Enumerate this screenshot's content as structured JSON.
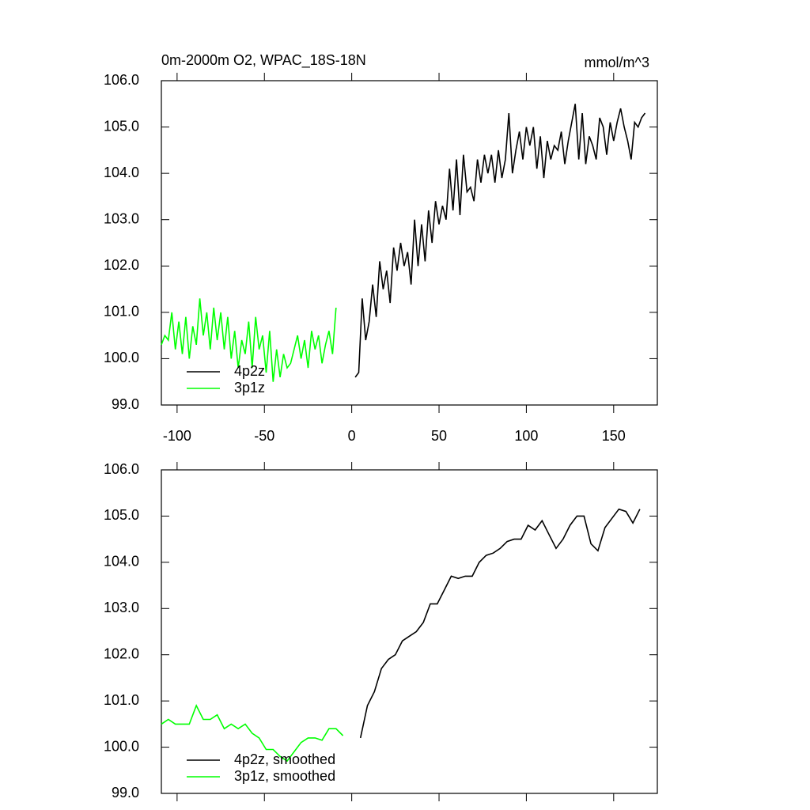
{
  "chart_data": [
    {
      "type": "line",
      "title": "0m-2000m O2, WPAC_18S-18N",
      "units_label": "mmol/m^3",
      "xlim": [
        -109,
        175
      ],
      "xticks": [
        -100,
        -50,
        0,
        50,
        100,
        150
      ],
      "show_xtick_labels": true,
      "ylim": [
        99,
        106
      ],
      "yticks": [
        {
          "value": 99,
          "label": "99.0"
        },
        {
          "value": 100,
          "label": "100.0"
        },
        {
          "value": 101,
          "label": "101.0"
        },
        {
          "value": 102,
          "label": "102.0"
        },
        {
          "value": 103,
          "label": "103.0"
        },
        {
          "value": 104,
          "label": "104.0"
        },
        {
          "value": 105,
          "label": "105.0"
        },
        {
          "value": 106,
          "label": "106.0"
        }
      ],
      "legend": "lower left",
      "series": [
        {
          "name": "4p2z",
          "color": "#000000",
          "x": [
            2,
            4,
            6,
            8,
            10,
            12,
            14,
            16,
            18,
            20,
            22,
            24,
            26,
            28,
            30,
            32,
            34,
            36,
            38,
            40,
            42,
            44,
            46,
            48,
            50,
            52,
            54,
            56,
            58,
            60,
            62,
            64,
            66,
            68,
            70,
            72,
            74,
            76,
            78,
            80,
            82,
            84,
            86,
            88,
            90,
            92,
            94,
            96,
            98,
            100,
            102,
            104,
            106,
            108,
            110,
            112,
            114,
            116,
            118,
            120,
            122,
            124,
            126,
            128,
            130,
            132,
            134,
            136,
            138,
            140,
            142,
            144,
            146,
            148,
            150,
            152,
            154,
            156,
            158,
            160,
            162,
            164,
            166,
            168
          ],
          "values": [
            99.6,
            99.7,
            101.3,
            100.4,
            100.8,
            101.6,
            100.9,
            102.1,
            101.5,
            101.9,
            101.2,
            102.4,
            101.9,
            102.5,
            102.0,
            102.3,
            101.6,
            103.0,
            102.0,
            102.9,
            102.1,
            103.2,
            102.5,
            103.4,
            102.9,
            103.3,
            103.0,
            104.1,
            103.2,
            104.3,
            103.1,
            104.4,
            103.6,
            103.7,
            103.4,
            104.3,
            103.8,
            104.4,
            104.0,
            104.4,
            103.8,
            104.5,
            103.9,
            104.3,
            105.3,
            104.0,
            104.5,
            104.9,
            104.3,
            105.0,
            104.6,
            105.0,
            104.1,
            104.8,
            103.9,
            104.7,
            104.3,
            104.6,
            104.5,
            104.9,
            104.2,
            104.7,
            105.1,
            105.5,
            104.3,
            105.3,
            104.2,
            104.8,
            104.6,
            104.3,
            105.2,
            105.0,
            104.4,
            105.1,
            104.7,
            105.1,
            105.4,
            105.0,
            104.7,
            104.3,
            105.1,
            105.0,
            105.2,
            105.3
          ]
        },
        {
          "name": "3p1z",
          "color": "#00ff00",
          "x": [
            -109,
            -107,
            -105,
            -103,
            -101,
            -99,
            -97,
            -95,
            -93,
            -91,
            -89,
            -87,
            -85,
            -83,
            -81,
            -79,
            -77,
            -75,
            -73,
            -71,
            -69,
            -67,
            -65,
            -63,
            -61,
            -59,
            -57,
            -55,
            -53,
            -51,
            -49,
            -47,
            -45,
            -43,
            -41,
            -39,
            -37,
            -35,
            -33,
            -31,
            -29,
            -27,
            -25,
            -23,
            -21,
            -19,
            -17,
            -15,
            -13,
            -11,
            -9
          ],
          "values": [
            100.3,
            100.5,
            100.4,
            101.0,
            100.2,
            100.8,
            100.1,
            100.9,
            100.0,
            100.7,
            100.3,
            101.3,
            100.5,
            101.0,
            100.2,
            101.1,
            100.4,
            101.0,
            100.2,
            100.9,
            100.0,
            100.6,
            99.8,
            100.4,
            100.1,
            100.8,
            99.8,
            100.9,
            100.2,
            100.5,
            99.7,
            100.6,
            99.5,
            100.2,
            99.6,
            100.1,
            99.8,
            99.9,
            100.2,
            100.5,
            100.0,
            100.4,
            99.8,
            100.6,
            100.2,
            100.5,
            99.9,
            100.3,
            100.6,
            100.1,
            101.1
          ]
        }
      ]
    },
    {
      "type": "line",
      "xlim": [
        -109,
        175
      ],
      "xticks": [
        -100,
        -50,
        0,
        50,
        100,
        150
      ],
      "show_xtick_labels": false,
      "ylim": [
        99,
        106
      ],
      "yticks": [
        {
          "value": 99,
          "label": "99.0"
        },
        {
          "value": 100,
          "label": "100.0"
        },
        {
          "value": 101,
          "label": "101.0"
        },
        {
          "value": 102,
          "label": "102.0"
        },
        {
          "value": 103,
          "label": "103.0"
        },
        {
          "value": 104,
          "label": "104.0"
        },
        {
          "value": 105,
          "label": "105.0"
        },
        {
          "value": 106,
          "label": "106.0"
        }
      ],
      "legend": "lower left",
      "series": [
        {
          "name": "4p2z, smoothed",
          "color": "#000000",
          "x": [
            5,
            9,
            13,
            17,
            21,
            25,
            29,
            33,
            37,
            41,
            45,
            49,
            53,
            57,
            61,
            65,
            69,
            73,
            77,
            81,
            85,
            89,
            93,
            97,
            101,
            105,
            109,
            113,
            117,
            121,
            125,
            129,
            133,
            137,
            141,
            145,
            149,
            153,
            157,
            161,
            165
          ],
          "values": [
            100.2,
            100.9,
            101.2,
            101.7,
            101.9,
            102.0,
            102.3,
            102.4,
            102.5,
            102.7,
            103.1,
            103.1,
            103.4,
            103.7,
            103.65,
            103.7,
            103.7,
            104.0,
            104.15,
            104.2,
            104.3,
            104.45,
            104.5,
            104.5,
            104.8,
            104.7,
            104.9,
            104.6,
            104.3,
            104.5,
            104.8,
            105.0,
            105.0,
            104.4,
            104.25,
            104.75,
            104.95,
            105.15,
            105.1,
            104.85,
            105.15
          ]
        },
        {
          "name": "3p1z, smoothed",
          "color": "#00ff00",
          "x": [
            -109,
            -105,
            -101,
            -97,
            -93,
            -89,
            -85,
            -81,
            -77,
            -73,
            -69,
            -65,
            -61,
            -57,
            -53,
            -49,
            -45,
            -41,
            -37,
            -33,
            -29,
            -25,
            -21,
            -17,
            -13,
            -9,
            -5
          ],
          "values": [
            100.5,
            100.6,
            100.5,
            100.5,
            100.5,
            100.9,
            100.6,
            100.6,
            100.7,
            100.4,
            100.5,
            100.4,
            100.5,
            100.3,
            100.2,
            99.95,
            99.95,
            99.8,
            99.7,
            99.9,
            100.1,
            100.2,
            100.2,
            100.15,
            100.4,
            100.4,
            100.25
          ]
        }
      ]
    }
  ]
}
